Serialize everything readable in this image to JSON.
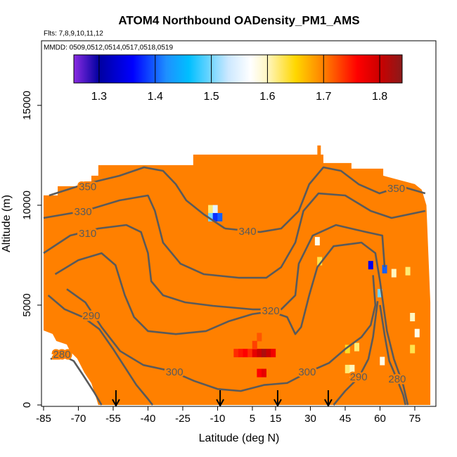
{
  "chart_data": {
    "type": "contour",
    "title": "ATOM4 Northbound OADensity_PM1_AMS",
    "subtitle": "Flts: 7,8,9,10,11,12",
    "annotation": "MMDD: 0509,0512,0514,0517,0518,0519",
    "x_label": "Latitude (deg N)",
    "y_label": "Altitude (m)",
    "xlim": [
      -85.9,
      84.1
    ],
    "ylim": [
      -70,
      18234
    ],
    "xticks": [
      -85,
      -70,
      -55,
      -40,
      -25,
      -10,
      5,
      15,
      30,
      45,
      60,
      75
    ],
    "yticks": [
      0,
      5000,
      10000,
      15000
    ],
    "colorbar": {
      "clim": [
        1.255,
        1.84
      ],
      "ticks": [
        1.3,
        1.4,
        1.5,
        1.6,
        1.7,
        1.8
      ],
      "stops": [
        1.255,
        1.3,
        1.36,
        1.42,
        1.46,
        1.53,
        1.57,
        1.6,
        1.65,
        1.7,
        1.76,
        1.8,
        1.84
      ],
      "colors": [
        "#8a2be2",
        "#0000a0",
        "#0000ff",
        "#1e90ff",
        "#00bfff",
        "#cce8ff",
        "#ffffff",
        "#fff6c0",
        "#ffd700",
        "#ff8000",
        "#ff0000",
        "#cc0000",
        "#8b1a1a"
      ]
    },
    "field": {
      "value": 1.7,
      "x": [
        -61.4,
        81.7,
        81.7,
        80,
        78,
        75,
        61.4,
        61.4,
        47.7,
        47.7,
        35.6,
        35.6,
        34.5,
        34.5,
        33,
        33,
        -20.5,
        -20.5,
        -61.4,
        -61.4,
        -64.4,
        -64.4,
        -78.9,
        -78.9,
        -85,
        -85,
        -81.1,
        -79.5,
        -75,
        -73.5,
        -70.5,
        -67.4,
        -64.4,
        -62.9
      ],
      "y": [
        0,
        0,
        5141,
        10000,
        10775,
        11056,
        11479,
        11831,
        11831,
        12113,
        12113,
        12535,
        12535,
        12993,
        12993,
        12535,
        12535,
        12007,
        12007,
        11479,
        11479,
        10951,
        10951,
        10493,
        10493,
        3732,
        3556,
        3204,
        3028,
        2676,
        2324,
        1620,
        1092,
        563
      ]
    },
    "cells": {
      "x": [
        -13,
        -11,
        -13,
        -11,
        -9,
        -2,
        0,
        2,
        4,
        6,
        8,
        10,
        12,
        14,
        6,
        8,
        10,
        8,
        33,
        34,
        46,
        48,
        46,
        50,
        48,
        62,
        66,
        72,
        60,
        74,
        76,
        74,
        61,
        56
      ],
      "y": [
        9800,
        9800,
        9400,
        9400,
        9400,
        2600,
        2600,
        2600,
        2600,
        2600,
        2600,
        2600,
        2600,
        2600,
        3000,
        1600,
        1600,
        3400,
        8200,
        7200,
        1800,
        1800,
        2800,
        2900,
        1400,
        6800,
        6600,
        6700,
        5600,
        4400,
        3600,
        2800,
        2200,
        7000
      ],
      "values": [
        1.62,
        1.55,
        1.5,
        1.38,
        1.4,
        1.74,
        1.75,
        1.76,
        1.74,
        1.78,
        1.8,
        1.82,
        1.8,
        1.77,
        1.73,
        1.76,
        1.78,
        1.72,
        1.58,
        1.63,
        1.62,
        1.6,
        1.64,
        1.62,
        1.55,
        1.4,
        1.6,
        1.62,
        1.5,
        1.6,
        1.58,
        1.63,
        1.58,
        1.35
      ]
    },
    "contours": [
      {
        "level": 350,
        "x": [
          -82.6,
          -67.4,
          -52.3,
          -41.7,
          -33.5,
          -28,
          -23.5,
          -15.9,
          -6.8
        ],
        "y": [
          10490,
          11053,
          11475,
          11898,
          11722,
          11053,
          10243,
          9539,
          8835
        ]
      },
      {
        "level": 340,
        "x": [
          -6.8,
          8.3,
          17.4,
          25,
          29.5,
          35.6,
          43.2,
          50.8,
          59.8,
          69,
          79.5
        ],
        "y": [
          8835,
          8659,
          8835,
          9715,
          11053,
          11898,
          11722,
          11053,
          10595,
          10947,
          10595
        ]
      },
      {
        "level": 330,
        "x": [
          -85,
          -67.4,
          -52.3,
          -40,
          -37,
          -33.5,
          -26,
          -15.9,
          -1,
          11,
          17.4,
          23.5,
          27,
          33.5,
          45,
          56,
          65,
          79.5
        ],
        "y": [
          9363,
          9715,
          10243,
          10490,
          9715,
          8131,
          7075,
          6547,
          6371,
          6371,
          6899,
          8131,
          9715,
          10595,
          10490,
          9715,
          9363,
          9715
        ]
      },
      {
        "level": 310,
        "x": [
          -85,
          -73.5,
          -61.4,
          -49.3,
          -43,
          -40,
          -38.6,
          -33.5,
          -24,
          -12,
          5,
          17.4,
          23.5,
          25,
          31,
          41,
          54,
          61,
          62
        ],
        "y": [
          7603,
          8483,
          8835,
          9011,
          8659,
          7603,
          6195,
          5491,
          5139,
          4963,
          4787,
          4787,
          5491,
          7075,
          8483,
          9011,
          8659,
          8483,
          6899
        ]
      },
      {
        "level": 320,
        "x": [
          -80,
          -70,
          -60,
          -54,
          -50,
          -46,
          -40,
          -28,
          -15,
          -5,
          5,
          12.9,
          20,
          23.5,
          26,
          29.5,
          33,
          40,
          52,
          58,
          60,
          63,
          66,
          70,
          72
        ],
        "y": [
          6547,
          7250,
          7600,
          7000,
          5500,
          4400,
          3700,
          3550,
          3700,
          4200,
          4550,
          4681,
          4400,
          3550,
          3900,
          5500,
          6900,
          7950,
          8131,
          7603,
          6200,
          3700,
          2300,
          1000,
          0
        ]
      },
      {
        "level": 300,
        "x": [
          -75,
          -67,
          -60,
          -52,
          -42,
          -30,
          -20,
          -10,
          0,
          10,
          20,
          28.6,
          38,
          45,
          52,
          56,
          58,
          57
        ],
        "y": [
          5800,
          5139,
          3900,
          2700,
          2000,
          1700,
          1200,
          800,
          700,
          1000,
          1100,
          1620,
          2100,
          2800,
          3400,
          4000,
          5000,
          6500
        ]
      },
      {
        "level": 290,
        "x": [
          -83,
          -76,
          -68,
          -61,
          -55,
          -50,
          -45,
          -40,
          -38
        ],
        "y": [
          5491,
          4800,
          4400,
          3800,
          2800,
          1900,
          1000,
          300,
          0
        ]
      },
      {
        "level": 290,
        "x": [
          40,
          45,
          50.8,
          55,
          57,
          59
        ],
        "y": [
          0,
          700,
          1370,
          2300,
          3400,
          5200
        ]
      },
      {
        "level": 280,
        "x": [
          -82,
          -77.1,
          -72,
          -68,
          -63,
          -60
        ],
        "y": [
          2300,
          2500,
          2200,
          1500,
          600,
          0
        ]
      },
      {
        "level": 280,
        "x": [
          60,
          62,
          64,
          67.4,
          70,
          71
        ],
        "y": [
          5000,
          3500,
          2200,
          1270,
          500,
          0
        ]
      }
    ],
    "contour_labels": [
      {
        "value": 350,
        "x": -66,
        "y": 10900
      },
      {
        "value": 330,
        "x": -68,
        "y": 9645
      },
      {
        "value": 310,
        "x": -66,
        "y": 8553
      },
      {
        "value": 340,
        "x": 2.9,
        "y": 8659
      },
      {
        "value": 350,
        "x": 67,
        "y": 10800
      },
      {
        "value": 320,
        "x": 12.9,
        "y": 4681
      },
      {
        "value": 290,
        "x": -64.4,
        "y": 4435
      },
      {
        "value": 280,
        "x": -77.1,
        "y": 2500
      },
      {
        "value": 300,
        "x": -28.6,
        "y": 1620
      },
      {
        "value": 300,
        "x": 28.6,
        "y": 1620
      },
      {
        "value": 290,
        "x": 50.8,
        "y": 1370
      },
      {
        "value": 280,
        "x": 67.4,
        "y": 1270
      }
    ],
    "arrows_x": [
      -53.8,
      -8.9,
      15.9,
      37.7
    ]
  }
}
